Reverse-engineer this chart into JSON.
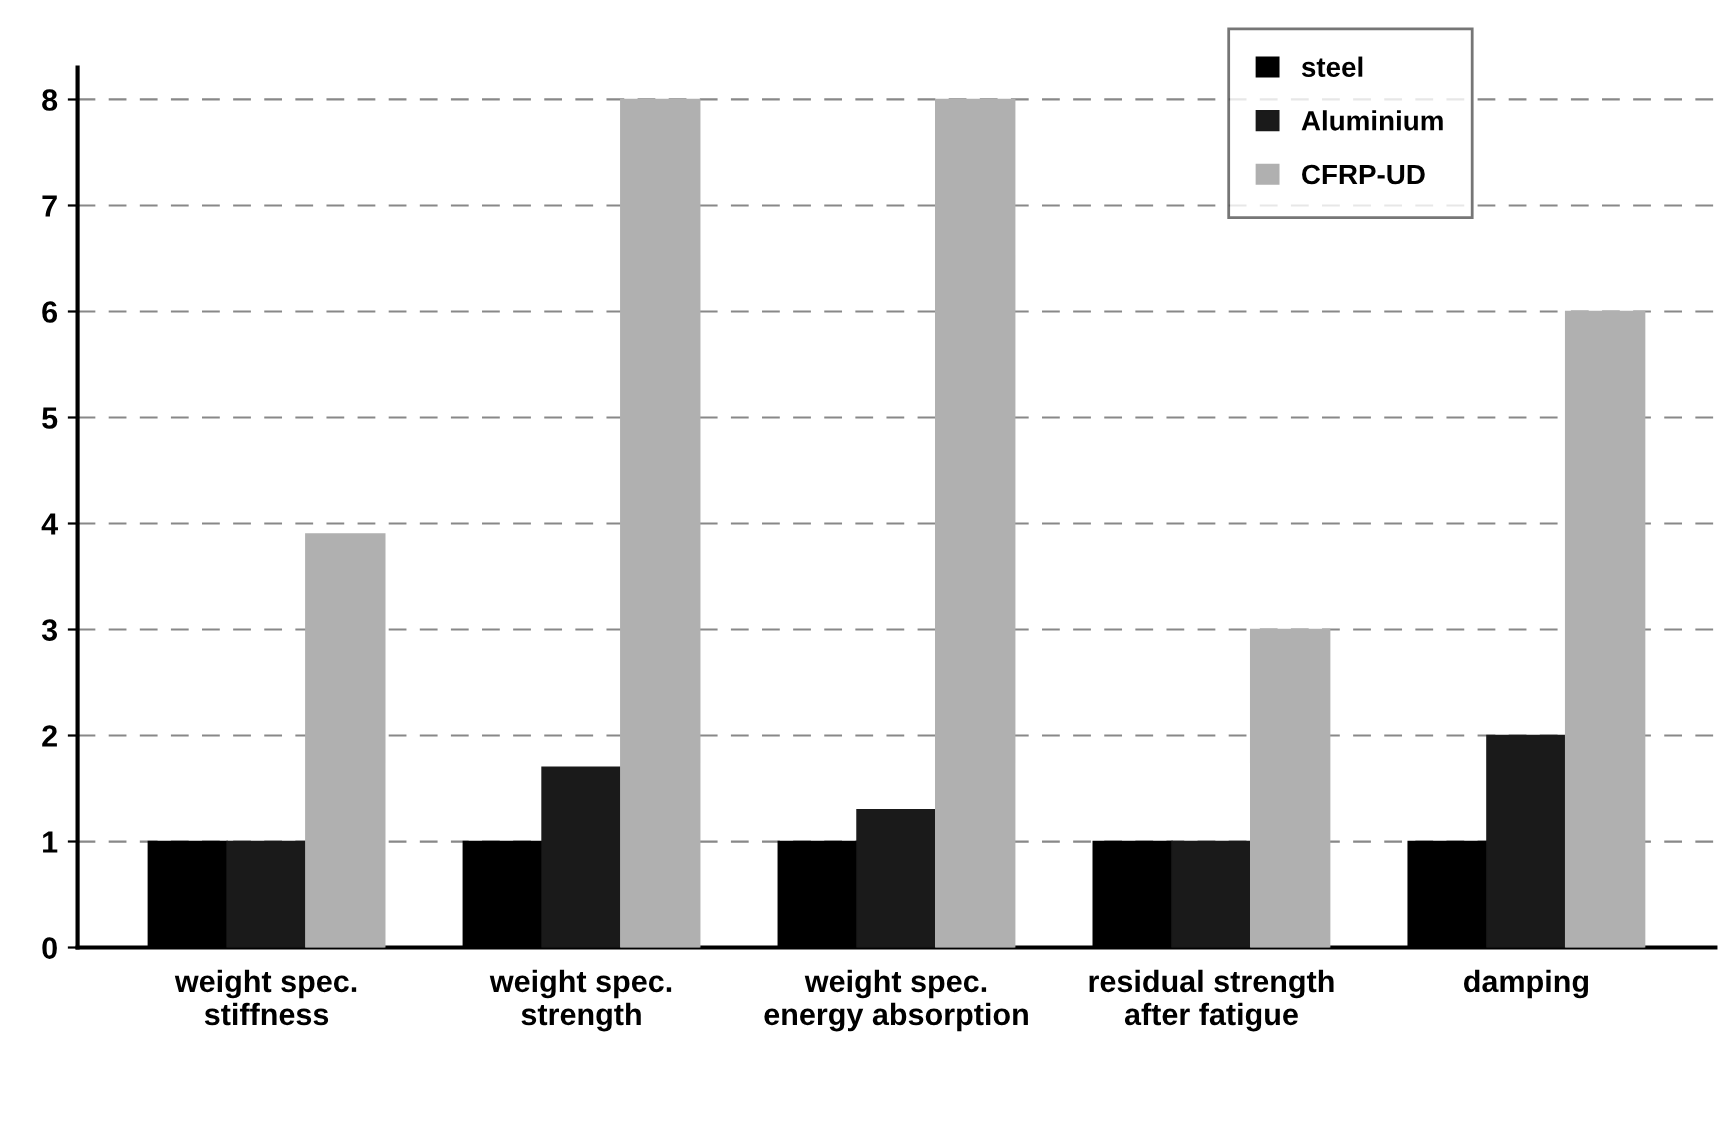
{
  "chart_data": {
    "type": "bar",
    "categories": [
      "weight spec.\nstiffness",
      "weight spec.\nstrength",
      "weight spec.\nenergy absorption",
      "residual strength\nafter fatigue",
      "damping"
    ],
    "series": [
      {
        "name": "steel",
        "color": "#000000",
        "values": [
          1,
          1,
          1,
          1,
          1
        ]
      },
      {
        "name": "Aluminium",
        "color": "#1a1a1a",
        "values": [
          1,
          1.7,
          1.3,
          1.0,
          2.0
        ]
      },
      {
        "name": "CFRP-UD",
        "color": "#b0b0b0",
        "values": [
          3.9,
          8,
          8,
          3.0,
          6.0
        ]
      }
    ],
    "ylim": [
      0,
      8.3
    ],
    "yticks": [
      0,
      1,
      2,
      3,
      4,
      5,
      6,
      7,
      8
    ],
    "grid": "y",
    "legend": "top right"
  }
}
